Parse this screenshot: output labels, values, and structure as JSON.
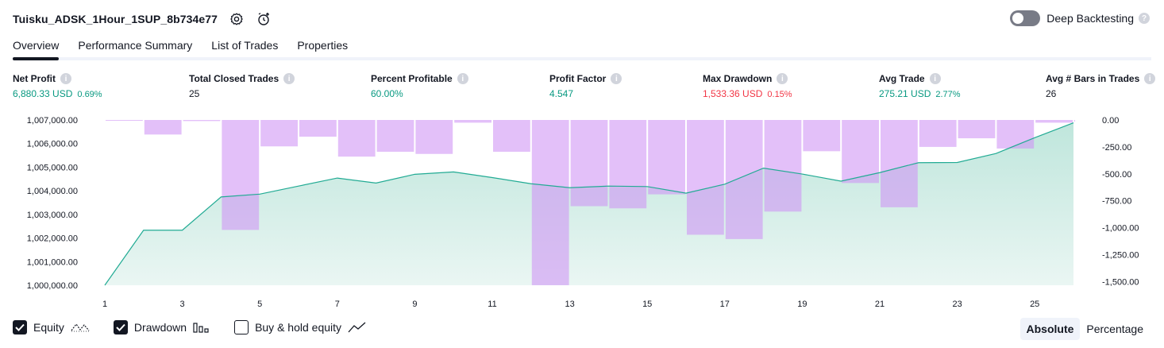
{
  "header": {
    "title": "Tuisku_ADSK_1Hour_1SUP_8b734e77"
  },
  "deep_backtesting": {
    "label": "Deep Backtesting",
    "enabled": false
  },
  "tabs": [
    {
      "label": "Overview",
      "active": true
    },
    {
      "label": "Performance Summary",
      "active": false
    },
    {
      "label": "List of Trades",
      "active": false
    },
    {
      "label": "Properties",
      "active": false
    }
  ],
  "metrics": [
    {
      "label": "Net Profit",
      "value": "6,880.33 USD",
      "pct": "0.69%",
      "tone": "pos"
    },
    {
      "label": "Total Closed Trades",
      "value": "25",
      "pct": "",
      "tone": "neutral"
    },
    {
      "label": "Percent Profitable",
      "value": "60.00%",
      "pct": "",
      "tone": "pos"
    },
    {
      "label": "Profit Factor",
      "value": "4.547",
      "pct": "",
      "tone": "pos"
    },
    {
      "label": "Max Drawdown",
      "value": "1,533.36 USD",
      "pct": "0.15%",
      "tone": "neg"
    },
    {
      "label": "Avg Trade",
      "value": "275.21 USD",
      "pct": "2.77%",
      "tone": "pos"
    },
    {
      "label": "Avg # Bars in Trades",
      "value": "26",
      "pct": "",
      "tone": "neutral"
    }
  ],
  "colors": {
    "equity_line": "#22ab94",
    "equity_fill_top": "#bfe6dc",
    "equity_fill_bottom": "#eaf6f3",
    "drawdown": "#ce93f5",
    "positive": "#089981",
    "negative": "#f23645"
  },
  "chart_data": {
    "type": "area",
    "x": [
      1,
      2,
      3,
      4,
      5,
      6,
      7,
      8,
      9,
      10,
      11,
      12,
      13,
      14,
      15,
      16,
      17,
      18,
      19,
      20,
      21,
      22,
      23,
      24,
      25,
      26
    ],
    "x_tick_labels": [
      "1",
      "3",
      "5",
      "7",
      "9",
      "11",
      "13",
      "15",
      "17",
      "19",
      "21",
      "23",
      "25"
    ],
    "x_ticks": [
      1,
      3,
      5,
      7,
      9,
      11,
      13,
      15,
      17,
      19,
      21,
      23,
      25
    ],
    "left_axis": {
      "ylim": [
        1000000,
        1007000
      ],
      "ticks": [
        1000000,
        1001000,
        1002000,
        1003000,
        1004000,
        1005000,
        1006000,
        1007000
      ],
      "tick_labels": [
        "1,000,000.00",
        "1,001,000.00",
        "1,002,000.00",
        "1,003,000.00",
        "1,004,000.00",
        "1,005,000.00",
        "1,006,000.00",
        "1,007,000.00"
      ]
    },
    "right_axis": {
      "ylim": [
        -1533.36,
        0
      ],
      "ticks": [
        0,
        -250,
        -500,
        -750,
        -1000,
        -1250,
        -1500
      ],
      "tick_labels": [
        "0.00",
        "-250.00",
        "-500.00",
        "-750.00",
        "-1,000.00",
        "-1,250.00",
        "-1,500.00"
      ]
    },
    "series": [
      {
        "name": "Equity",
        "kind": "area",
        "values": [
          1000000,
          1002330,
          1002330,
          1003740,
          1003860,
          1004200,
          1004540,
          1004330,
          1004700,
          1004800,
          1004560,
          1004300,
          1004130,
          1004200,
          1004180,
          1003900,
          1004280,
          1004960,
          1004710,
          1004410,
          1004770,
          1005190,
          1005200,
          1005580,
          1006250,
          1006880
        ]
      },
      {
        "name": "Drawdown",
        "kind": "bar",
        "values": [
          -5,
          -135,
          -10,
          -1020,
          -245,
          -155,
          -340,
          -295,
          -315,
          -25,
          -295,
          -1533,
          -800,
          -820,
          -690,
          -1065,
          -1105,
          -850,
          -290,
          -585,
          -810,
          -250,
          -170,
          -265,
          -25,
          -15
        ]
      }
    ],
    "grid": false
  },
  "legend": [
    {
      "label": "Equity",
      "checked": true
    },
    {
      "label": "Drawdown",
      "checked": true
    },
    {
      "label": "Buy & hold equity",
      "checked": false
    }
  ],
  "modes": [
    {
      "label": "Absolute",
      "active": true
    },
    {
      "label": "Percentage",
      "active": false
    }
  ]
}
